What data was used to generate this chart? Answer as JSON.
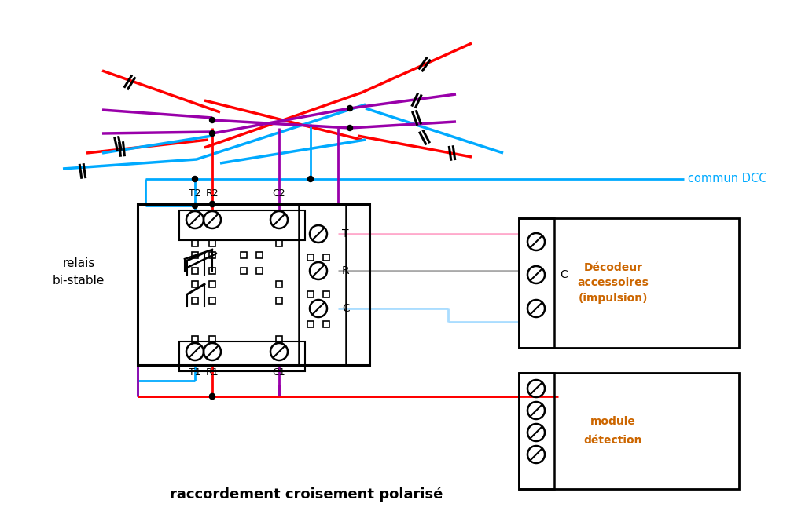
{
  "title": "raccordement croisement polarisé",
  "bg_color": "#ffffff",
  "colors": {
    "red": "#ff0000",
    "blue": "#00aaff",
    "purple": "#9900aa",
    "pink": "#ffaacc",
    "lightblue": "#aaddff",
    "gray": "#aaaaaa",
    "black": "#000000",
    "orange": "#cc6600"
  },
  "labels": {
    "commun_DCC": "commun DCC",
    "relais": "relais",
    "bi_stable": "bi-stable",
    "decodeur_line1": "Décodeur",
    "decodeur_line2": "accessoires",
    "decodeur_line3": "(impulsion)",
    "module_detection_line1": "module",
    "module_detection_line2": "détection",
    "T": "T",
    "R": "R",
    "C": "C",
    "T2": "T2",
    "R2": "R2",
    "C2": "C2",
    "T1": "T1",
    "R1": "R1",
    "C1": "C1"
  }
}
